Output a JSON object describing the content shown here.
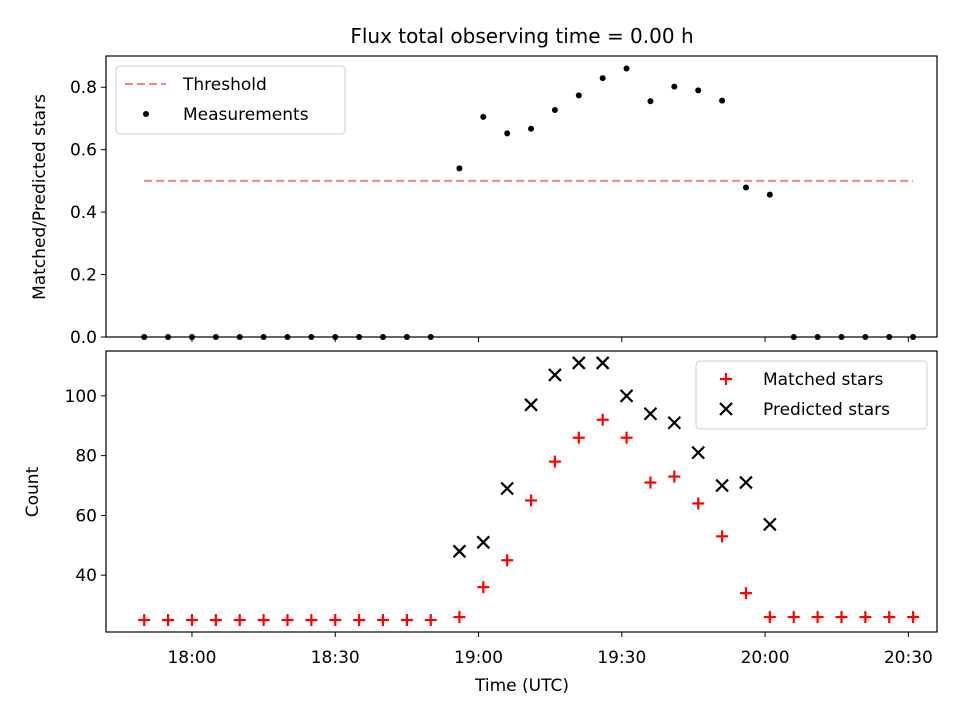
{
  "chart_data": [
    {
      "type": "scatter",
      "title": "Flux total observing time = 0.00 h",
      "xlabel": "",
      "ylabel": "Matched/Predicted stars",
      "xlim": [
        "17:42",
        "20:36"
      ],
      "ylim": [
        0,
        0.9
      ],
      "yticks": [
        0.0,
        0.2,
        0.4,
        0.6,
        0.8
      ],
      "legend_position": "upper-left",
      "threshold": {
        "name": "Threshold",
        "value": 0.5,
        "x_range": [
          "17:50",
          "20:31"
        ],
        "color": "#ff7f7f",
        "style": "dashed"
      },
      "series": [
        {
          "name": "Measurements",
          "marker": "dot",
          "color": "#000000",
          "x": [
            "17:50",
            "17:55",
            "18:00",
            "18:05",
            "18:10",
            "18:15",
            "18:20",
            "18:25",
            "18:30",
            "18:35",
            "18:40",
            "18:45",
            "18:50",
            "18:56",
            "19:01",
            "19:06",
            "19:11",
            "19:16",
            "19:21",
            "19:26",
            "19:31",
            "19:36",
            "19:41",
            "19:46",
            "19:51",
            "19:56",
            "20:01",
            "20:06",
            "20:11",
            "20:16",
            "20:21",
            "20:26",
            "20:31"
          ],
          "y": [
            0,
            0,
            0,
            0,
            0,
            0,
            0,
            0,
            0,
            0,
            0,
            0,
            0,
            0.54,
            0.705,
            0.652,
            0.667,
            0.727,
            0.774,
            0.829,
            0.86,
            0.755,
            0.802,
            0.79,
            0.757,
            0.479,
            0.456,
            0,
            0,
            0,
            0,
            0,
            0
          ]
        }
      ]
    },
    {
      "type": "scatter",
      "title": "",
      "xlabel": "Time (UTC)",
      "ylabel": "Count",
      "xlim": [
        "17:42",
        "20:36"
      ],
      "ylim": [
        21,
        115
      ],
      "yticks": [
        40,
        60,
        80,
        100
      ],
      "xticks": [
        "18:00",
        "18:30",
        "19:00",
        "19:30",
        "20:00",
        "20:30"
      ],
      "legend_position": "upper-right",
      "series": [
        {
          "name": "Matched stars",
          "marker": "plus",
          "color": "#ff0000",
          "x": [
            "17:50",
            "17:55",
            "18:00",
            "18:05",
            "18:10",
            "18:15",
            "18:20",
            "18:25",
            "18:30",
            "18:35",
            "18:40",
            "18:45",
            "18:50",
            "18:56",
            "19:01",
            "19:06",
            "19:11",
            "19:16",
            "19:21",
            "19:26",
            "19:31",
            "19:36",
            "19:41",
            "19:46",
            "19:51",
            "19:56",
            "20:01",
            "20:06",
            "20:11",
            "20:16",
            "20:21",
            "20:26",
            "20:31"
          ],
          "y": [
            25,
            25,
            25,
            25,
            25,
            25,
            25,
            25,
            25,
            25,
            25,
            25,
            25,
            26,
            36,
            45,
            65,
            78,
            86,
            92,
            86,
            71,
            73,
            64,
            53,
            34,
            26,
            26,
            26,
            26,
            26,
            26,
            26
          ]
        },
        {
          "name": "Predicted stars",
          "marker": "x",
          "color": "#000000",
          "x": [
            "18:56",
            "19:01",
            "19:06",
            "19:11",
            "19:16",
            "19:21",
            "19:26",
            "19:31",
            "19:36",
            "19:41",
            "19:46",
            "19:51",
            "19:56",
            "20:01"
          ],
          "y": [
            48,
            51,
            69,
            97,
            107,
            111,
            111,
            100,
            94,
            91,
            81,
            70,
            71,
            57
          ]
        }
      ]
    }
  ]
}
